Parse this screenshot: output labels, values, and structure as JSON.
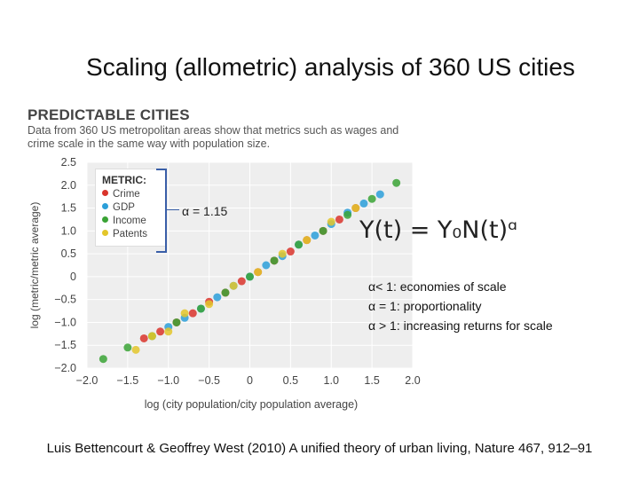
{
  "slide": {
    "title": "Scaling (allometric) analysis of 360 US cities",
    "citation": "Luis Bettencourt & Geoffrey West (2010) A unified theory of urban living, Nature 467, 912–91"
  },
  "figure": {
    "header": "PREDICTABLE CITIES",
    "subheader": "Data from 360 US metropolitan areas show that metrics such as wages and crime scale in the same way with population size.",
    "formula": "Y(t) = Y₀N(t)ᵅ",
    "alpha_value": "α = 1.15",
    "alpha_notes": [
      "α< 1: economies of scale",
      "α = 1: proportionality",
      "α > 1: increasing returns for scale"
    ],
    "legend": {
      "title": "METRIC:",
      "items": [
        {
          "label": "Crime",
          "color": "#d9342b"
        },
        {
          "label": "GDP",
          "color": "#2b9fd9"
        },
        {
          "label": "Income",
          "color": "#3aa335"
        },
        {
          "label": "Patents",
          "color": "#e3c62a"
        }
      ]
    }
  },
  "chart_data": {
    "type": "scatter",
    "xlabel": "log (city population/city population average)",
    "ylabel": "log (metric/metric average)",
    "xlim": [
      -2.0,
      2.0
    ],
    "ylim": [
      -2.0,
      2.5
    ],
    "x_ticks": [
      "−2.0",
      "−1.5",
      "−1.0",
      "−0.5",
      "0",
      "0.5",
      "1.0",
      "1.5",
      "2.0"
    ],
    "y_ticks": [
      "2.5",
      "2.0",
      "1.5",
      "1.0",
      "0.5",
      "0",
      "−0.5",
      "−1.0",
      "−1.5",
      "−2.0"
    ],
    "slope": 1.15,
    "series": [
      {
        "name": "Crime",
        "color": "#d9342b",
        "x": [
          -1.3,
          -1.1,
          -0.9,
          -0.7,
          -0.5,
          -0.3,
          -0.1,
          0.1,
          0.3,
          0.5,
          0.7,
          0.9,
          1.1,
          1.3
        ],
        "y": [
          -1.35,
          -1.2,
          -1.0,
          -0.8,
          -0.55,
          -0.35,
          -0.1,
          0.1,
          0.35,
          0.55,
          0.8,
          1.0,
          1.25,
          1.5
        ]
      },
      {
        "name": "GDP",
        "color": "#2b9fd9",
        "x": [
          -1.0,
          -0.8,
          -0.6,
          -0.4,
          -0.2,
          0.0,
          0.2,
          0.4,
          0.6,
          0.8,
          1.0,
          1.2,
          1.4,
          1.6
        ],
        "y": [
          -1.1,
          -0.9,
          -0.7,
          -0.45,
          -0.2,
          0.0,
          0.25,
          0.45,
          0.7,
          0.9,
          1.15,
          1.4,
          1.6,
          1.8
        ]
      },
      {
        "name": "Income",
        "color": "#3aa335",
        "x": [
          -1.8,
          -1.5,
          -1.2,
          -0.9,
          -0.6,
          -0.3,
          0.0,
          0.3,
          0.6,
          0.9,
          1.2,
          1.5,
          1.8
        ],
        "y": [
          -1.8,
          -1.55,
          -1.3,
          -1.0,
          -0.7,
          -0.35,
          0.0,
          0.35,
          0.7,
          1.0,
          1.35,
          1.7,
          2.05
        ]
      },
      {
        "name": "Patents",
        "color": "#e3c62a",
        "x": [
          -1.4,
          -1.2,
          -1.0,
          -0.8,
          -0.5,
          -0.2,
          0.1,
          0.4,
          0.7,
          1.0,
          1.3
        ],
        "y": [
          -1.6,
          -1.3,
          -1.2,
          -0.8,
          -0.6,
          -0.2,
          0.1,
          0.5,
          0.8,
          1.2,
          1.5
        ]
      }
    ]
  }
}
